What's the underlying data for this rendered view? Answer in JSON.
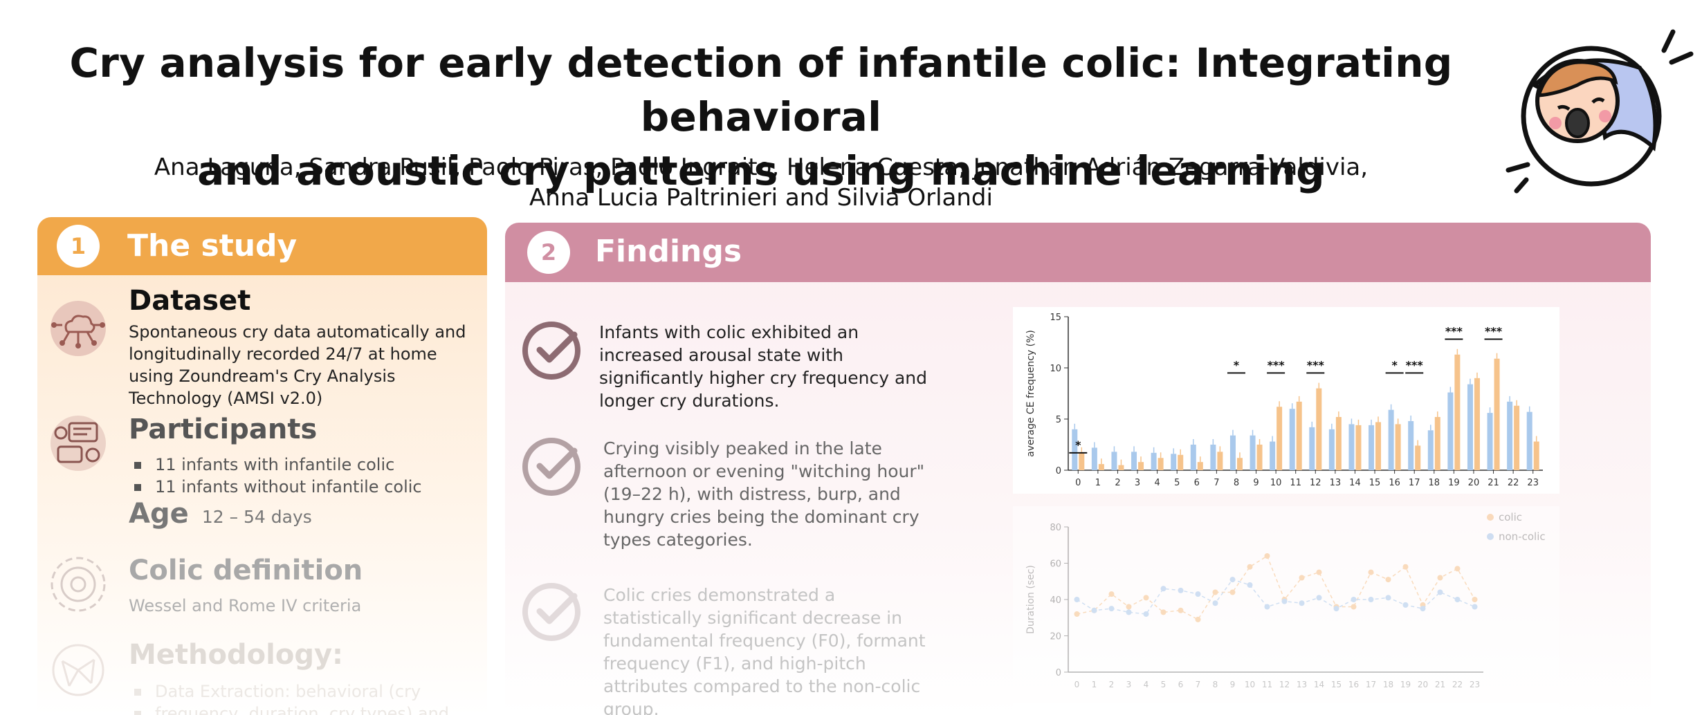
{
  "header": {
    "title_line1": "Cry analysis for early detection of infantile colic: Integrating behavioral",
    "title_line2": "and acoustic cry patterns using machine learning",
    "authors_line1": "Ana Laguna, Sandra Pusil, Paolo Piras, Paolo Ingraito, Helena Cuesta, Jonathan Adrián Zegarra-Valdivia,",
    "authors_line2": "Anna Lucia Paltrinieri and Silvia Orlandi",
    "logo_icon": "crying-baby-icon"
  },
  "colors": {
    "orange": "#f1a84a",
    "pink": "#d08ea2",
    "colic": "#f6c38b",
    "noncolic": "#a9c9ec"
  },
  "study": {
    "number": "1",
    "title": "The study",
    "dataset": {
      "heading": "Dataset",
      "text": "Spontaneous cry data automatically and longitudinally recorded 24/7 at home using Zoundream's Cry Analysis Technology (AMSI v2.0)",
      "icon": "cloud-network-icon"
    },
    "participants": {
      "heading": "Participants",
      "items": [
        "11 infants with infantile colic",
        "11 infants without infantile colic"
      ],
      "icon": "chat-faces-icon"
    },
    "age": {
      "label": "Age",
      "value": "12 – 54 days"
    },
    "colic_definition": {
      "heading": "Colic definition",
      "text": "Wessel and Rome IV criteria",
      "icon": "target-icon"
    },
    "methodology": {
      "heading": "Methodology:",
      "items": [
        "Data Extraction: behavioral (cry",
        "frequency, duration, cry types) and"
      ],
      "icon": "network-icon"
    }
  },
  "findings": {
    "number": "2",
    "title": "Findings",
    "items": [
      "Infants with colic exhibited an increased arousal state with significantly higher cry frequency and longer cry durations.",
      "Crying visibly peaked in the late afternoon or evening \"witching hour\" (19–22 h), with distress, burp, and hungry cries being the dominant cry types categories.",
      "Colic cries demonstrated a statistically significant decrease in fundamental frequency (F0), formant frequency (F1), and high-pitch attributes compared to the non-colic group."
    ]
  },
  "chart_data": [
    {
      "type": "bar",
      "ylabel": "average CE frequency (%)",
      "ylim": [
        0,
        15
      ],
      "yticks": [
        0,
        5,
        10,
        15
      ],
      "categories": [
        "0",
        "1",
        "2",
        "3",
        "4",
        "5",
        "6",
        "7",
        "8",
        "9",
        "10",
        "11",
        "12",
        "13",
        "14",
        "15",
        "16",
        "17",
        "18",
        "19",
        "20",
        "21",
        "22",
        "23"
      ],
      "series": [
        {
          "values": [
            4.0,
            2.2,
            1.8,
            1.8,
            1.7,
            1.6,
            2.5,
            2.5,
            3.4,
            3.4,
            2.8,
            6.0,
            4.2,
            4.0,
            4.5,
            4.4,
            5.9,
            4.8,
            3.9,
            7.6,
            8.4,
            5.6,
            6.7,
            5.7
          ]
        },
        {
          "values": [
            1.7,
            0.6,
            0.5,
            0.8,
            1.2,
            1.5,
            0.8,
            1.8,
            1.2,
            2.5,
            6.2,
            6.7,
            8.0,
            5.2,
            4.4,
            4.7,
            4.5,
            2.4,
            5.2,
            11.3,
            9.0,
            10.9,
            6.3,
            2.8
          ]
        }
      ],
      "significance": [
        "*",
        "*",
        "***",
        "***",
        "*",
        "***",
        "***",
        "***"
      ]
    },
    {
      "type": "line",
      "ylabel": "Duration (sec)",
      "ylim": [
        0,
        80
      ],
      "yticks": [
        0,
        20,
        40,
        60,
        80
      ],
      "x": [
        "0",
        "1",
        "2",
        "3",
        "4",
        "5",
        "6",
        "7",
        "8",
        "9",
        "10",
        "11",
        "12",
        "13",
        "14",
        "15",
        "16",
        "17",
        "18",
        "19",
        "20",
        "21",
        "22",
        "23"
      ],
      "legend_position": "top-right",
      "series": [
        {
          "name": "colic",
          "values": [
            32,
            34,
            43,
            36,
            41,
            33,
            34,
            29,
            44,
            44,
            58,
            64,
            40,
            52,
            55,
            36,
            36,
            55,
            51,
            58,
            37,
            52,
            57,
            40
          ]
        },
        {
          "name": "non-colic",
          "values": [
            40,
            34,
            35,
            33,
            32,
            46,
            45,
            43,
            38,
            51,
            48,
            36,
            39,
            38,
            41,
            35,
            40,
            40,
            41,
            37,
            35,
            44,
            40,
            36
          ]
        }
      ]
    }
  ]
}
